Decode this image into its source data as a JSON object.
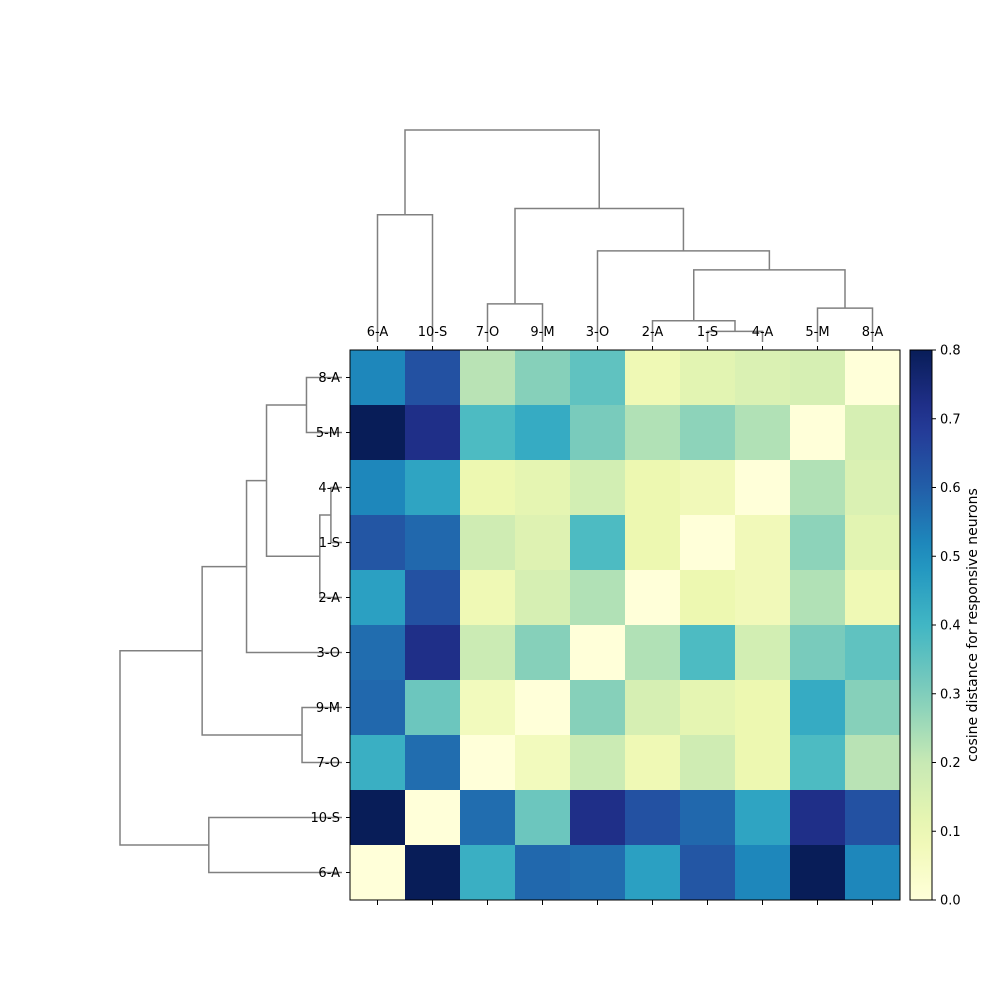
{
  "chart_data": {
    "type": "heatmap",
    "columns": [
      "6-A",
      "10-S",
      "7-O",
      "9-M",
      "3-O",
      "2-A",
      "1-S",
      "4-A",
      "5-M",
      "8-A"
    ],
    "rows": [
      "8-A",
      "5-M",
      "4-A",
      "1-S",
      "2-A",
      "3-O",
      "9-M",
      "7-O",
      "10-S",
      "6-A"
    ],
    "values": [
      [
        0.52,
        0.63,
        0.22,
        0.29,
        0.35,
        0.09,
        0.13,
        0.15,
        0.16,
        0.0
      ],
      [
        0.8,
        0.72,
        0.38,
        0.43,
        0.31,
        0.23,
        0.28,
        0.23,
        0.0,
        0.16
      ],
      [
        0.52,
        0.45,
        0.1,
        0.12,
        0.17,
        0.1,
        0.08,
        0.0,
        0.23,
        0.15
      ],
      [
        0.62,
        0.58,
        0.18,
        0.14,
        0.38,
        0.1,
        0.0,
        0.08,
        0.28,
        0.13
      ],
      [
        0.46,
        0.63,
        0.09,
        0.16,
        0.23,
        0.0,
        0.1,
        0.08,
        0.23,
        0.09
      ],
      [
        0.57,
        0.72,
        0.19,
        0.29,
        0.0,
        0.23,
        0.38,
        0.17,
        0.31,
        0.35
      ],
      [
        0.58,
        0.33,
        0.07,
        0.0,
        0.29,
        0.16,
        0.12,
        0.1,
        0.43,
        0.29
      ],
      [
        0.42,
        0.57,
        0.0,
        0.07,
        0.19,
        0.09,
        0.18,
        0.1,
        0.38,
        0.22
      ],
      [
        0.8,
        0.0,
        0.57,
        0.33,
        0.72,
        0.63,
        0.58,
        0.45,
        0.72,
        0.63
      ],
      [
        0.0,
        0.8,
        0.42,
        0.58,
        0.57,
        0.46,
        0.62,
        0.52,
        0.8,
        0.52
      ]
    ],
    "colormap": "YlGnBu",
    "vmin": 0.0,
    "vmax": 0.8,
    "colorbar": {
      "label": "cosine distance for responsive neurons",
      "ticks": [
        "0.0",
        "0.1",
        "0.2",
        "0.3",
        "0.4",
        "0.5",
        "0.6",
        "0.7",
        "0.8"
      ],
      "tick_values": [
        0.0,
        0.1,
        0.2,
        0.3,
        0.4,
        0.5,
        0.6,
        0.7,
        0.8
      ]
    },
    "dendrogram": {
      "leaf_order": [
        "6-A",
        "10-S",
        "7-O",
        "9-M",
        "3-O",
        "2-A",
        "1-S",
        "4-A",
        "5-M",
        "8-A"
      ],
      "merges": [
        {
          "a": "1-S",
          "b": "4-A",
          "height": 0.05
        },
        {
          "a": "2-A",
          "b": "1-S+4-A",
          "height": 0.1
        },
        {
          "a": "5-M",
          "b": "8-A",
          "height": 0.16
        },
        {
          "a": "7-O",
          "b": "9-M",
          "height": 0.18
        },
        {
          "a": "2-A+1-S+4-A",
          "b": "5-M+8-A",
          "height": 0.34
        },
        {
          "a": "3-O",
          "b": "2-A+1-S+4-A+5-M+8-A",
          "height": 0.43
        },
        {
          "a": "6-A",
          "b": "10-S",
          "height": 0.6
        },
        {
          "a": "7-O+9-M",
          "b": "3-O+2-A+1-S+4-A+5-M+8-A",
          "height": 0.63
        },
        {
          "a": "6-A+10-S",
          "b": "7-O+9-M+3-O+2-A+1-S+4-A+5-M+8-A",
          "height": 1.0
        }
      ]
    },
    "colors": {
      "dendrogram_line": "#808080",
      "background": "#ffffff"
    }
  }
}
